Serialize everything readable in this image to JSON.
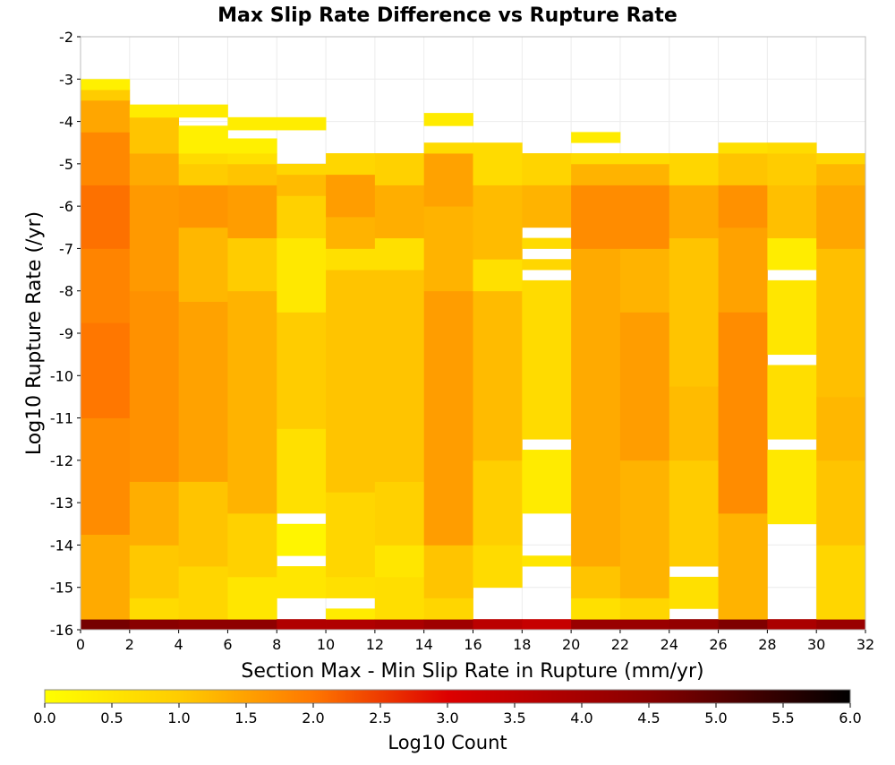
{
  "chart_data": {
    "type": "heatmap",
    "title": "Max Slip Rate Difference vs Rupture Rate",
    "xlabel": "Section Max - Min Slip Rate in Rupture (mm/yr)",
    "ylabel": "Log10 Rupture Rate (/yr)",
    "xlim": [
      0,
      32
    ],
    "ylim": [
      -16,
      -2
    ],
    "x_bin_width": 2,
    "y_bin_height": 0.25,
    "x_ticks": [
      "0",
      "2",
      "4",
      "6",
      "8",
      "10",
      "12",
      "14",
      "16",
      "18",
      "20",
      "22",
      "24",
      "26",
      "28",
      "30",
      "32"
    ],
    "y_ticks": [
      "-2",
      "-3",
      "-4",
      "-5",
      "-6",
      "-7",
      "-8",
      "-9",
      "-10",
      "-11",
      "-12",
      "-13",
      "-14",
      "-15",
      "-16"
    ],
    "grid": true,
    "colorbar": {
      "label": "Log10 Count",
      "range": [
        0,
        6
      ],
      "ticks": [
        "0.0",
        "0.5",
        "1.0",
        "1.5",
        "2.0",
        "2.5",
        "3.0",
        "3.5",
        "4.0",
        "4.5",
        "5.0",
        "5.5",
        "6.0"
      ],
      "stops": [
        {
          "value": 0.0,
          "color": "#ffff00"
        },
        {
          "value": 1.0,
          "color": "#ffcc00"
        },
        {
          "value": 2.0,
          "color": "#ff7700"
        },
        {
          "value": 3.0,
          "color": "#dd0000"
        },
        {
          "value": 4.5,
          "color": "#880000"
        },
        {
          "value": 6.0,
          "color": "#000000"
        }
      ]
    },
    "columns": [
      {
        "x": 0,
        "segments": [
          {
            "from": -16,
            "to": -15.75,
            "value": 4.7
          },
          {
            "from": -15.75,
            "to": -13.75,
            "value": 1.4
          },
          {
            "from": -13.75,
            "to": -11,
            "value": 1.75
          },
          {
            "from": -11,
            "to": -8.75,
            "value": 2.0
          },
          {
            "from": -8.75,
            "to": -7,
            "value": 1.85
          },
          {
            "from": -7,
            "to": -5.5,
            "value": 2.05
          },
          {
            "from": -5.5,
            "to": -4.25,
            "value": 1.8
          },
          {
            "from": -4.25,
            "to": -3.5,
            "value": 1.45
          },
          {
            "from": -3.5,
            "to": -3.25,
            "value": 1.0
          },
          {
            "from": -3.25,
            "to": -3.0,
            "value": 0.3
          }
        ]
      },
      {
        "x": 2,
        "segments": [
          {
            "from": -16,
            "to": -15.75,
            "value": 4.5
          },
          {
            "from": -15.75,
            "to": -15.25,
            "value": 0.7
          },
          {
            "from": -15.25,
            "to": -14,
            "value": 1.05
          },
          {
            "from": -14,
            "to": -12.5,
            "value": 1.35
          },
          {
            "from": -12.5,
            "to": -8,
            "value": 1.7
          },
          {
            "from": -8,
            "to": -5.5,
            "value": 1.6
          },
          {
            "from": -5.5,
            "to": -4.75,
            "value": 1.4
          },
          {
            "from": -4.75,
            "to": -3.9,
            "value": 1.1
          },
          {
            "from": -3.9,
            "to": -3.6,
            "value": 0.4
          }
        ]
      },
      {
        "x": 4,
        "segments": [
          {
            "from": -16,
            "to": -15.75,
            "value": 4.4
          },
          {
            "from": -15.75,
            "to": -14.5,
            "value": 0.8
          },
          {
            "from": -14.5,
            "to": -12.5,
            "value": 1.1
          },
          {
            "from": -12.5,
            "to": -8.25,
            "value": 1.5
          },
          {
            "from": -8.25,
            "to": -6.5,
            "value": 1.25
          },
          {
            "from": -6.5,
            "to": -5.5,
            "value": 1.65
          },
          {
            "from": -5.5,
            "to": -5.0,
            "value": 1.0
          },
          {
            "from": -5.0,
            "to": -4.75,
            "value": 0.7
          },
          {
            "from": -4.75,
            "to": -4.1,
            "value": 0.3
          },
          {
            "from": -3.9,
            "to": -3.6,
            "value": 0.4
          }
        ]
      },
      {
        "x": 6,
        "segments": [
          {
            "from": -16,
            "to": -15.75,
            "value": 4.4
          },
          {
            "from": -15.75,
            "to": -14.75,
            "value": 0.5
          },
          {
            "from": -14.75,
            "to": -13.25,
            "value": 0.9
          },
          {
            "from": -13.25,
            "to": -8.0,
            "value": 1.3
          },
          {
            "from": -8.0,
            "to": -6.75,
            "value": 1.0
          },
          {
            "from": -6.75,
            "to": -5.5,
            "value": 1.55
          },
          {
            "from": -5.5,
            "to": -5.0,
            "value": 1.1
          },
          {
            "from": -5.0,
            "to": -4.75,
            "value": 0.6
          },
          {
            "from": -4.75,
            "to": -4.4,
            "value": 0.3
          },
          {
            "from": -4.2,
            "to": -3.9,
            "value": 0.35
          }
        ]
      },
      {
        "x": 8,
        "segments": [
          {
            "from": -16,
            "to": -15.75,
            "value": 3.8
          },
          {
            "from": -15.25,
            "to": -14.5,
            "value": 0.5
          },
          {
            "from": -14.25,
            "to": -13.5,
            "value": 0.2
          },
          {
            "from": -13.25,
            "to": -11.25,
            "value": 0.6
          },
          {
            "from": -11.25,
            "to": -8.5,
            "value": 1.0
          },
          {
            "from": -8.5,
            "to": -6.75,
            "value": 0.45
          },
          {
            "from": -6.75,
            "to": -5.75,
            "value": 0.9
          },
          {
            "from": -5.75,
            "to": -5.25,
            "value": 1.2
          },
          {
            "from": -5.25,
            "to": -5.0,
            "value": 0.8
          },
          {
            "from": -4.2,
            "to": -3.9,
            "value": 0.35
          }
        ]
      },
      {
        "x": 10,
        "segments": [
          {
            "from": -16,
            "to": -15.75,
            "value": 3.8
          },
          {
            "from": -15.75,
            "to": -15.5,
            "value": 0.4
          },
          {
            "from": -15.25,
            "to": -14.75,
            "value": 0.6
          },
          {
            "from": -14.75,
            "to": -12.75,
            "value": 0.8
          },
          {
            "from": -12.75,
            "to": -7.5,
            "value": 1.1
          },
          {
            "from": -7.5,
            "to": -7.0,
            "value": 0.6
          },
          {
            "from": -7.0,
            "to": -6.25,
            "value": 1.3
          },
          {
            "from": -6.25,
            "to": -5.25,
            "value": 1.55
          },
          {
            "from": -5.25,
            "to": -4.75,
            "value": 0.8
          }
        ]
      },
      {
        "x": 12,
        "segments": [
          {
            "from": -16,
            "to": -15.75,
            "value": 3.9
          },
          {
            "from": -15.75,
            "to": -14.75,
            "value": 0.65
          },
          {
            "from": -14.75,
            "to": -14.0,
            "value": 0.5
          },
          {
            "from": -14.0,
            "to": -12.5,
            "value": 0.9
          },
          {
            "from": -12.5,
            "to": -7.5,
            "value": 1.1
          },
          {
            "from": -7.5,
            "to": -6.75,
            "value": 0.6
          },
          {
            "from": -6.75,
            "to": -5.5,
            "value": 1.35
          },
          {
            "from": -5.5,
            "to": -4.75,
            "value": 0.9
          }
        ]
      },
      {
        "x": 14,
        "segments": [
          {
            "from": -16,
            "to": -15.75,
            "value": 4.1
          },
          {
            "from": -15.75,
            "to": -15.25,
            "value": 0.8
          },
          {
            "from": -15.25,
            "to": -14.0,
            "value": 1.1
          },
          {
            "from": -14.0,
            "to": -8.0,
            "value": 1.55
          },
          {
            "from": -8.0,
            "to": -6.0,
            "value": 1.3
          },
          {
            "from": -6.0,
            "to": -4.75,
            "value": 1.5
          },
          {
            "from": -4.75,
            "to": -4.5,
            "value": 0.7
          },
          {
            "from": -4.1,
            "to": -3.8,
            "value": 0.4
          }
        ]
      },
      {
        "x": 16,
        "segments": [
          {
            "from": -16,
            "to": -15.75,
            "value": 3.6
          },
          {
            "from": -15.0,
            "to": -14.0,
            "value": 0.7
          },
          {
            "from": -14.0,
            "to": -12.0,
            "value": 0.95
          },
          {
            "from": -12.0,
            "to": -8.0,
            "value": 1.2
          },
          {
            "from": -8.0,
            "to": -7.25,
            "value": 0.6
          },
          {
            "from": -7.25,
            "to": -5.5,
            "value": 1.2
          },
          {
            "from": -5.5,
            "to": -4.5,
            "value": 0.7
          }
        ]
      },
      {
        "x": 18,
        "segments": [
          {
            "from": -16,
            "to": -15.75,
            "value": 3.4
          },
          {
            "from": -14.5,
            "to": -14.25,
            "value": 0.5
          },
          {
            "from": -13.25,
            "to": -11.75,
            "value": 0.4
          },
          {
            "from": -11.5,
            "to": -7.75,
            "value": 0.7
          },
          {
            "from": -7.5,
            "to": -7.25,
            "value": 0.8
          },
          {
            "from": -7.0,
            "to": -6.75,
            "value": 0.7
          },
          {
            "from": -6.5,
            "to": -5.5,
            "value": 1.3
          },
          {
            "from": -5.5,
            "to": -4.75,
            "value": 0.85
          }
        ]
      },
      {
        "x": 20,
        "segments": [
          {
            "from": -16,
            "to": -15.75,
            "value": 4.2
          },
          {
            "from": -15.75,
            "to": -15.25,
            "value": 0.6
          },
          {
            "from": -15.25,
            "to": -14.5,
            "value": 1.1
          },
          {
            "from": -14.5,
            "to": -7.0,
            "value": 1.4
          },
          {
            "from": -7.0,
            "to": -5.5,
            "value": 1.75
          },
          {
            "from": -5.5,
            "to": -5.0,
            "value": 1.3
          },
          {
            "from": -5.0,
            "to": -4.75,
            "value": 0.7
          },
          {
            "from": -4.5,
            "to": -4.25,
            "value": 0.4
          }
        ]
      },
      {
        "x": 22,
        "segments": [
          {
            "from": -16,
            "to": -15.75,
            "value": 4.2
          },
          {
            "from": -15.75,
            "to": -15.25,
            "value": 0.8
          },
          {
            "from": -15.25,
            "to": -12.0,
            "value": 1.3
          },
          {
            "from": -12.0,
            "to": -8.5,
            "value": 1.55
          },
          {
            "from": -8.5,
            "to": -7.0,
            "value": 1.3
          },
          {
            "from": -7.0,
            "to": -5.5,
            "value": 1.75
          },
          {
            "from": -5.5,
            "to": -5.0,
            "value": 1.3
          },
          {
            "from": -5.0,
            "to": -4.75,
            "value": 0.7
          }
        ]
      },
      {
        "x": 24,
        "segments": [
          {
            "from": -16,
            "to": -15.75,
            "value": 4.3
          },
          {
            "from": -15.5,
            "to": -14.75,
            "value": 0.6
          },
          {
            "from": -14.5,
            "to": -12.0,
            "value": 1.0
          },
          {
            "from": -12.0,
            "to": -10.25,
            "value": 1.2
          },
          {
            "from": -10.25,
            "to": -6.75,
            "value": 1.1
          },
          {
            "from": -6.75,
            "to": -5.5,
            "value": 1.4
          },
          {
            "from": -5.5,
            "to": -4.75,
            "value": 0.8
          }
        ]
      },
      {
        "x": 26,
        "segments": [
          {
            "from": -16,
            "to": -15.75,
            "value": 4.6
          },
          {
            "from": -15.75,
            "to": -13.25,
            "value": 1.3
          },
          {
            "from": -13.25,
            "to": -8.5,
            "value": 1.75
          },
          {
            "from": -8.5,
            "to": -6.5,
            "value": 1.5
          },
          {
            "from": -6.5,
            "to": -5.5,
            "value": 1.7
          },
          {
            "from": -5.5,
            "to": -4.75,
            "value": 1.1
          },
          {
            "from": -4.75,
            "to": -4.5,
            "value": 0.6
          }
        ]
      },
      {
        "x": 28,
        "segments": [
          {
            "from": -16,
            "to": -15.75,
            "value": 3.9
          },
          {
            "from": -13.5,
            "to": -11.75,
            "value": 0.45
          },
          {
            "from": -11.5,
            "to": -9.75,
            "value": 0.65
          },
          {
            "from": -9.5,
            "to": -7.75,
            "value": 0.5
          },
          {
            "from": -7.5,
            "to": -6.75,
            "value": 0.35
          },
          {
            "from": -6.75,
            "to": -5.5,
            "value": 1.15
          },
          {
            "from": -5.5,
            "to": -4.75,
            "value": 1.0
          },
          {
            "from": -4.75,
            "to": -4.5,
            "value": 0.7
          }
        ]
      },
      {
        "x": 30,
        "segments": [
          {
            "from": -16,
            "to": -15.75,
            "value": 4.2
          },
          {
            "from": -15.75,
            "to": -14.0,
            "value": 0.8
          },
          {
            "from": -14.0,
            "to": -12.0,
            "value": 1.1
          },
          {
            "from": -12.0,
            "to": -10.5,
            "value": 1.25
          },
          {
            "from": -10.5,
            "to": -7.0,
            "value": 1.15
          },
          {
            "from": -7.0,
            "to": -5.5,
            "value": 1.45
          },
          {
            "from": -5.5,
            "to": -5.0,
            "value": 1.25
          },
          {
            "from": -5.0,
            "to": -4.75,
            "value": 0.8
          }
        ]
      }
    ]
  }
}
